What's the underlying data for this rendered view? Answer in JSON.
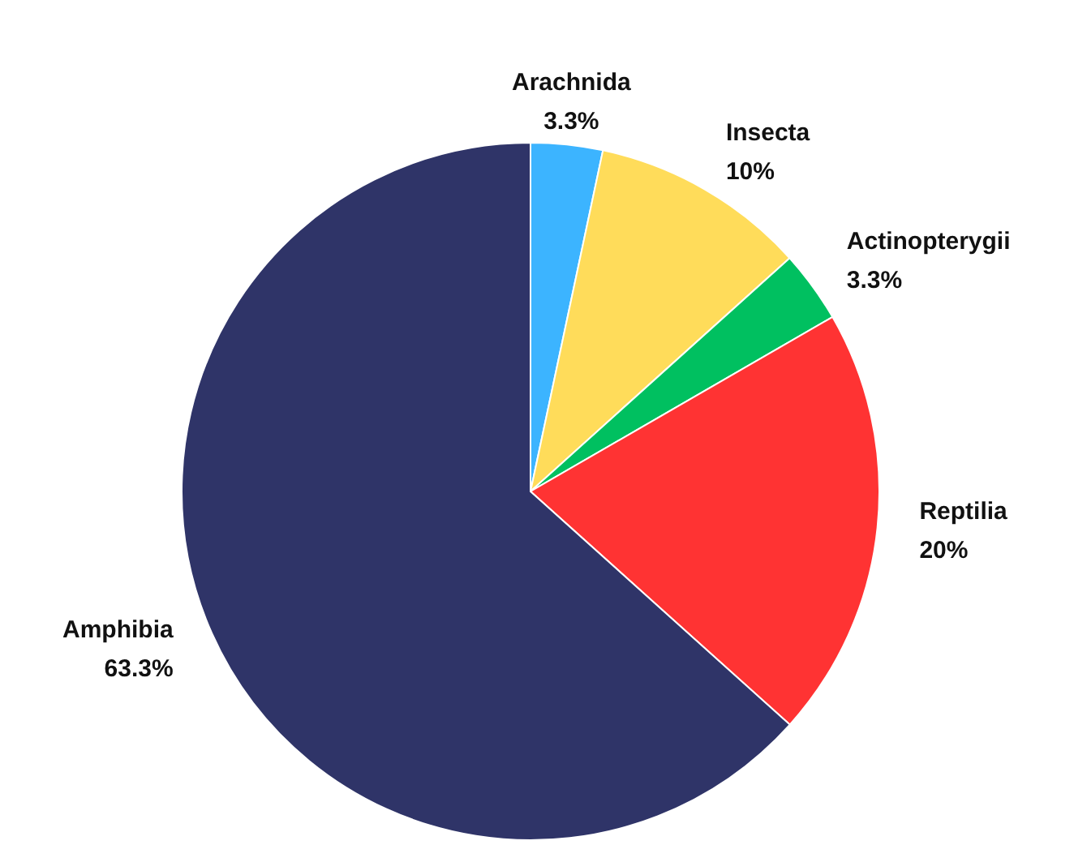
{
  "chart_data": {
    "type": "pie",
    "categories": [
      "Arachnida",
      "Insecta",
      "Actinopterygii",
      "Reptilia",
      "Amphibia"
    ],
    "values": [
      3.33,
      10,
      3.33,
      20,
      63.34
    ],
    "value_labels": [
      "3.3%",
      "10%",
      "3.3%",
      "20%",
      "63.3%"
    ],
    "colors": [
      "#3cb4ff",
      "#ffdc5a",
      "#00c060",
      "#ff3333",
      "#2f3468"
    ]
  }
}
